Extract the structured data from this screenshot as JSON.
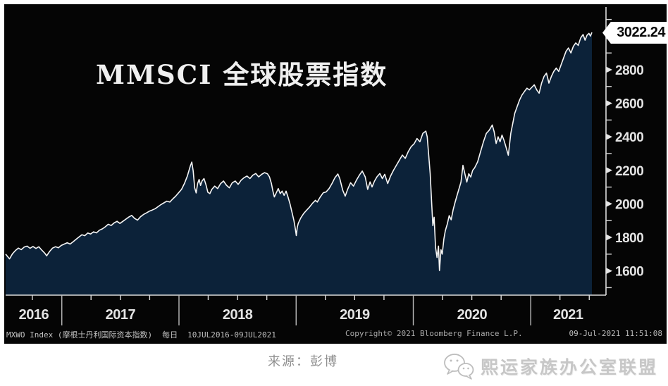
{
  "title": "MMSCI 全球股票指数",
  "last_price": "3022.24",
  "status_bar": {
    "security": "MXWO Index (摩根士丹利国际资本指数)",
    "frequency": "每日",
    "date_range": "10JUL2016-09JUL2021",
    "copyright": "Copyright© 2021 Bloomberg Finance L.P.",
    "timestamp": "09-Jul-2021 11:51:08"
  },
  "footer": {
    "source": "来源：彭博",
    "brand": "熙运家族办公室联盟",
    "brand_icon": "wechat-icon"
  },
  "colors": {
    "panel_bg": "#050505",
    "area_fill": "#0c2239",
    "price_line": "#f5f5f5",
    "axis": "#dcdcdc",
    "tick_label": "#e3e3e3",
    "badge_bg": "#ffffff",
    "badge_text": "#0a0a0a"
  },
  "chart_data": {
    "type": "area",
    "title": "MMSCI 全球股票指数",
    "series_name": "MXWO Index",
    "x_epoch": "10JUL2016",
    "x_span_months": 60,
    "x_tick_labels": [
      "2016",
      "2017",
      "2018",
      "2019",
      "2020",
      "2021"
    ],
    "x_year_boundaries_months": [
      5.75,
      17.74,
      29.73,
      41.72,
      53.74
    ],
    "x_quarter_ticks_months": [
      2.73,
      8.74,
      11.74,
      14.74,
      20.73,
      23.73,
      26.73,
      32.72,
      35.72,
      38.72,
      44.71,
      47.71,
      50.71,
      56.73,
      59.73
    ],
    "y_ticks_major": [
      1600,
      1800,
      2000,
      2200,
      2400,
      2600,
      2800,
      3000
    ],
    "y_ticks_minor": [
      1500,
      1700,
      1900,
      2100,
      2300,
      2500,
      2700,
      2900,
      3100
    ],
    "ylim": [
      1455,
      3180
    ],
    "grid": false,
    "legend": "none",
    "last_value": 3022.24,
    "points": [
      [
        0,
        1700
      ],
      [
        0.4,
        1672
      ],
      [
        0.7,
        1702
      ],
      [
        1,
        1722
      ],
      [
        1.3,
        1736
      ],
      [
        1.6,
        1727
      ],
      [
        1.9,
        1742
      ],
      [
        2.2,
        1748
      ],
      [
        2.5,
        1735
      ],
      [
        2.8,
        1746
      ],
      [
        3.1,
        1734
      ],
      [
        3.4,
        1744
      ],
      [
        3.7,
        1724
      ],
      [
        4,
        1706
      ],
      [
        4.2,
        1690
      ],
      [
        4.5,
        1716
      ],
      [
        4.8,
        1736
      ],
      [
        5.1,
        1744
      ],
      [
        5.4,
        1738
      ],
      [
        5.7,
        1752
      ],
      [
        6,
        1760
      ],
      [
        6.3,
        1768
      ],
      [
        6.6,
        1760
      ],
      [
        6.9,
        1774
      ],
      [
        7.2,
        1788
      ],
      [
        7.5,
        1802
      ],
      [
        7.8,
        1816
      ],
      [
        8.1,
        1810
      ],
      [
        8.4,
        1826
      ],
      [
        8.7,
        1820
      ],
      [
        9,
        1833
      ],
      [
        9.3,
        1827
      ],
      [
        9.6,
        1843
      ],
      [
        9.9,
        1851
      ],
      [
        10.2,
        1863
      ],
      [
        10.5,
        1878
      ],
      [
        10.8,
        1871
      ],
      [
        11.1,
        1886
      ],
      [
        11.4,
        1896
      ],
      [
        11.7,
        1883
      ],
      [
        12,
        1896
      ],
      [
        12.3,
        1909
      ],
      [
        12.6,
        1921
      ],
      [
        12.9,
        1931
      ],
      [
        13.2,
        1913
      ],
      [
        13.5,
        1903
      ],
      [
        13.8,
        1923
      ],
      [
        14.1,
        1936
      ],
      [
        14.4,
        1946
      ],
      [
        14.7,
        1956
      ],
      [
        15,
        1963
      ],
      [
        15.3,
        1971
      ],
      [
        15.6,
        1983
      ],
      [
        15.9,
        1996
      ],
      [
        16.2,
        2006
      ],
      [
        16.5,
        2016
      ],
      [
        16.8,
        2011
      ],
      [
        17.1,
        2029
      ],
      [
        17.4,
        2046
      ],
      [
        17.7,
        2066
      ],
      [
        18,
        2086
      ],
      [
        18.3,
        2122
      ],
      [
        18.6,
        2166
      ],
      [
        18.9,
        2226
      ],
      [
        19.05,
        2249
      ],
      [
        19.2,
        2195
      ],
      [
        19.35,
        2095
      ],
      [
        19.5,
        2065
      ],
      [
        19.65,
        2122
      ],
      [
        19.8,
        2146
      ],
      [
        19.95,
        2110
      ],
      [
        20.1,
        2136
      ],
      [
        20.3,
        2151
      ],
      [
        20.5,
        2114
      ],
      [
        20.7,
        2069
      ],
      [
        20.9,
        2061
      ],
      [
        21.1,
        2086
      ],
      [
        21.4,
        2106
      ],
      [
        21.7,
        2091
      ],
      [
        22,
        2121
      ],
      [
        22.3,
        2136
      ],
      [
        22.6,
        2111
      ],
      [
        22.9,
        2096
      ],
      [
        23.2,
        2126
      ],
      [
        23.5,
        2136
      ],
      [
        23.8,
        2116
      ],
      [
        24.1,
        2141
      ],
      [
        24.4,
        2156
      ],
      [
        24.7,
        2166
      ],
      [
        25,
        2151
      ],
      [
        25.3,
        2171
      ],
      [
        25.6,
        2181
      ],
      [
        25.9,
        2161
      ],
      [
        26.2,
        2176
      ],
      [
        26.5,
        2186
      ],
      [
        26.8,
        2179
      ],
      [
        27,
        2161
      ],
      [
        27.2,
        2121
      ],
      [
        27.35,
        2076
      ],
      [
        27.5,
        2041
      ],
      [
        27.7,
        2066
      ],
      [
        27.9,
        2091
      ],
      [
        28.1,
        2061
      ],
      [
        28.3,
        2076
      ],
      [
        28.5,
        2051
      ],
      [
        28.7,
        2076
      ],
      [
        28.9,
        2041
      ],
      [
        29.1,
        2001
      ],
      [
        29.3,
        1951
      ],
      [
        29.5,
        1901
      ],
      [
        29.65,
        1851
      ],
      [
        29.75,
        1811
      ],
      [
        29.85,
        1861
      ],
      [
        29.95,
        1884
      ],
      [
        30.2,
        1916
      ],
      [
        30.5,
        1942
      ],
      [
        30.8,
        1962
      ],
      [
        31.1,
        1981
      ],
      [
        31.4,
        2003
      ],
      [
        31.7,
        2021
      ],
      [
        31.9,
        2011
      ],
      [
        32.2,
        2041
      ],
      [
        32.5,
        2066
      ],
      [
        32.8,
        2071
      ],
      [
        33.1,
        2091
      ],
      [
        33.4,
        2121
      ],
      [
        33.7,
        2156
      ],
      [
        34,
        2178
      ],
      [
        34.2,
        2151
      ],
      [
        34.5,
        2081
      ],
      [
        34.75,
        2046
      ],
      [
        35,
        2086
      ],
      [
        35.3,
        2126
      ],
      [
        35.6,
        2106
      ],
      [
        35.9,
        2141
      ],
      [
        36.2,
        2171
      ],
      [
        36.5,
        2196
      ],
      [
        36.8,
        2161
      ],
      [
        37.05,
        2086
      ],
      [
        37.3,
        2131
      ],
      [
        37.5,
        2101
      ],
      [
        37.75,
        2136
      ],
      [
        38,
        2161
      ],
      [
        38.3,
        2181
      ],
      [
        38.55,
        2151
      ],
      [
        38.8,
        2176
      ],
      [
        39.1,
        2121
      ],
      [
        39.4,
        2166
      ],
      [
        39.7,
        2201
      ],
      [
        40,
        2231
      ],
      [
        40.3,
        2261
      ],
      [
        40.6,
        2291
      ],
      [
        40.9,
        2271
      ],
      [
        41.2,
        2311
      ],
      [
        41.5,
        2341
      ],
      [
        41.8,
        2358
      ],
      [
        42.1,
        2390
      ],
      [
        42.4,
        2370
      ],
      [
        42.7,
        2420
      ],
      [
        43,
        2434
      ],
      [
        43.15,
        2400
      ],
      [
        43.3,
        2290
      ],
      [
        43.45,
        2180
      ],
      [
        43.6,
        2005
      ],
      [
        43.72,
        1870
      ],
      [
        43.85,
        1920
      ],
      [
        44,
        1740
      ],
      [
        44.15,
        1680
      ],
      [
        44.3,
        1748
      ],
      [
        44.4,
        1602
      ],
      [
        44.55,
        1726
      ],
      [
        44.68,
        1700
      ],
      [
        44.85,
        1790
      ],
      [
        45,
        1840
      ],
      [
        45.2,
        1880
      ],
      [
        45.4,
        1930
      ],
      [
        45.6,
        1905
      ],
      [
        45.8,
        1965
      ],
      [
        46,
        2010
      ],
      [
        46.2,
        2050
      ],
      [
        46.4,
        2090
      ],
      [
        46.6,
        2130
      ],
      [
        46.8,
        2230
      ],
      [
        47,
        2180
      ],
      [
        47.2,
        2130
      ],
      [
        47.4,
        2180
      ],
      [
        47.6,
        2160
      ],
      [
        47.8,
        2200
      ],
      [
        48,
        2215
      ],
      [
        48.3,
        2250
      ],
      [
        48.6,
        2310
      ],
      [
        48.9,
        2370
      ],
      [
        49.2,
        2420
      ],
      [
        49.5,
        2440
      ],
      [
        49.8,
        2470
      ],
      [
        50,
        2430
      ],
      [
        50.2,
        2360
      ],
      [
        50.4,
        2400
      ],
      [
        50.6,
        2370
      ],
      [
        50.8,
        2410
      ],
      [
        51,
        2380
      ],
      [
        51.2,
        2340
      ],
      [
        51.45,
        2290
      ],
      [
        51.7,
        2420
      ],
      [
        51.9,
        2480
      ],
      [
        52.1,
        2540
      ],
      [
        52.35,
        2580
      ],
      [
        52.6,
        2620
      ],
      [
        52.85,
        2650
      ],
      [
        53.1,
        2670
      ],
      [
        53.35,
        2690
      ],
      [
        53.6,
        2680
      ],
      [
        53.85,
        2695
      ],
      [
        54.1,
        2710
      ],
      [
        54.35,
        2680
      ],
      [
        54.6,
        2660
      ],
      [
        54.85,
        2720
      ],
      [
        55.1,
        2760
      ],
      [
        55.35,
        2780
      ],
      [
        55.6,
        2720
      ],
      [
        55.85,
        2760
      ],
      [
        56.1,
        2790
      ],
      [
        56.35,
        2810
      ],
      [
        56.6,
        2790
      ],
      [
        56.85,
        2830
      ],
      [
        57.1,
        2870
      ],
      [
        57.35,
        2910
      ],
      [
        57.6,
        2930
      ],
      [
        57.85,
        2900
      ],
      [
        58.1,
        2940
      ],
      [
        58.35,
        2960
      ],
      [
        58.6,
        2945
      ],
      [
        58.85,
        2990
      ],
      [
        59.1,
        3010
      ],
      [
        59.3,
        2976
      ],
      [
        59.5,
        3006
      ],
      [
        59.7,
        3017
      ],
      [
        59.85,
        3001
      ],
      [
        60,
        3022.24
      ]
    ]
  }
}
